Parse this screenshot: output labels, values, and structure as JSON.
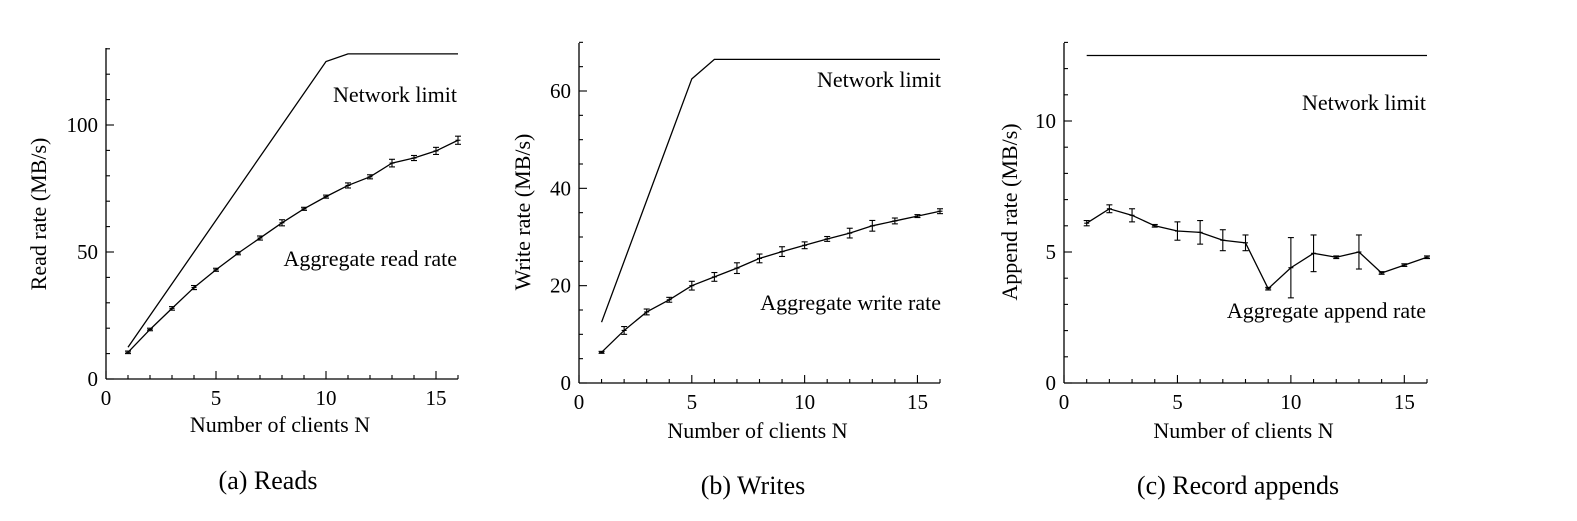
{
  "chart_data": [
    {
      "type": "line",
      "caption": "(a) Reads",
      "xlabel": "Number of clients N",
      "ylabel": "Read rate (MB/s)",
      "xlim": [
        0,
        16
      ],
      "ylim": [
        0,
        130
      ],
      "xticks": [
        0,
        5,
        10,
        15
      ],
      "yticks": [
        0,
        50,
        100
      ],
      "series": [
        {
          "name": "Network limit",
          "x": [
            1,
            10,
            11,
            16
          ],
          "y": [
            12.5,
            125,
            128,
            128
          ]
        },
        {
          "name": "Aggregate read rate",
          "x": [
            1,
            2,
            3,
            4,
            5,
            6,
            7,
            8,
            9,
            10,
            11,
            12,
            13,
            14,
            15,
            16
          ],
          "y": [
            10.5,
            19.5,
            27.8,
            36,
            43,
            49.5,
            55.5,
            61.5,
            67,
            71.8,
            76.2,
            79.6,
            85,
            87,
            89.8,
            94
          ],
          "err": [
            0.5,
            0.5,
            0.7,
            0.8,
            0.6,
            0.6,
            0.8,
            1.2,
            0.6,
            0.6,
            1,
            0.8,
            1.5,
            1,
            1.4,
            1.6
          ]
        }
      ],
      "annotations": [
        {
          "text": "Network limit"
        },
        {
          "text": "Aggregate read rate"
        }
      ]
    },
    {
      "type": "line",
      "caption": "(b) Writes",
      "xlabel": "Number of clients N",
      "ylabel": "Write rate (MB/s)",
      "xlim": [
        0,
        16
      ],
      "ylim": [
        0,
        70
      ],
      "xticks": [
        0,
        5,
        10,
        15
      ],
      "yticks": [
        0,
        20,
        40,
        60
      ],
      "series": [
        {
          "name": "Network limit",
          "x": [
            1,
            5,
            6,
            16
          ],
          "y": [
            12.5,
            62.5,
            66.5,
            66.5
          ]
        },
        {
          "name": "Aggregate write rate",
          "x": [
            1,
            2,
            3,
            4,
            5,
            6,
            7,
            8,
            9,
            10,
            11,
            12,
            13,
            14,
            15,
            16
          ],
          "y": [
            6.3,
            10.8,
            14.6,
            17.1,
            20,
            21.8,
            23.6,
            25.6,
            27,
            28.3,
            29.6,
            30.8,
            32.3,
            33.3,
            34.3,
            35.3
          ],
          "err": [
            0.2,
            0.8,
            0.6,
            0.5,
            0.9,
            0.9,
            1.1,
            0.9,
            1,
            0.7,
            0.5,
            1,
            1.1,
            0.6,
            0.3,
            0.5
          ]
        }
      ],
      "annotations": [
        {
          "text": "Network limit"
        },
        {
          "text": "Aggregate write rate"
        }
      ]
    },
    {
      "type": "line",
      "caption": "(c) Record appends",
      "xlabel": "Number of clients N",
      "ylabel": "Append rate (MB/s)",
      "xlim": [
        0,
        16
      ],
      "ylim": [
        0,
        13
      ],
      "xticks": [
        0,
        5,
        10,
        15
      ],
      "yticks": [
        0,
        5,
        10
      ],
      "series": [
        {
          "name": "Network limit",
          "x": [
            1,
            16
          ],
          "y": [
            12.5,
            12.5
          ]
        },
        {
          "name": "Aggregate append rate",
          "x": [
            1,
            2,
            3,
            4,
            5,
            6,
            7,
            8,
            9,
            10,
            11,
            12,
            13,
            14,
            15,
            16
          ],
          "y": [
            6.1,
            6.65,
            6.4,
            6.0,
            5.8,
            5.75,
            5.45,
            5.35,
            3.6,
            4.4,
            4.95,
            4.8,
            5.0,
            4.2,
            4.5,
            4.8
          ],
          "err": [
            0.1,
            0.15,
            0.25,
            0.05,
            0.35,
            0.45,
            0.4,
            0.3,
            0.05,
            1.15,
            0.7,
            0.05,
            0.65,
            0.05,
            0.05,
            0.05
          ]
        }
      ],
      "annotations": [
        {
          "text": "Network limit"
        },
        {
          "text": "Aggregate append rate"
        }
      ]
    }
  ]
}
